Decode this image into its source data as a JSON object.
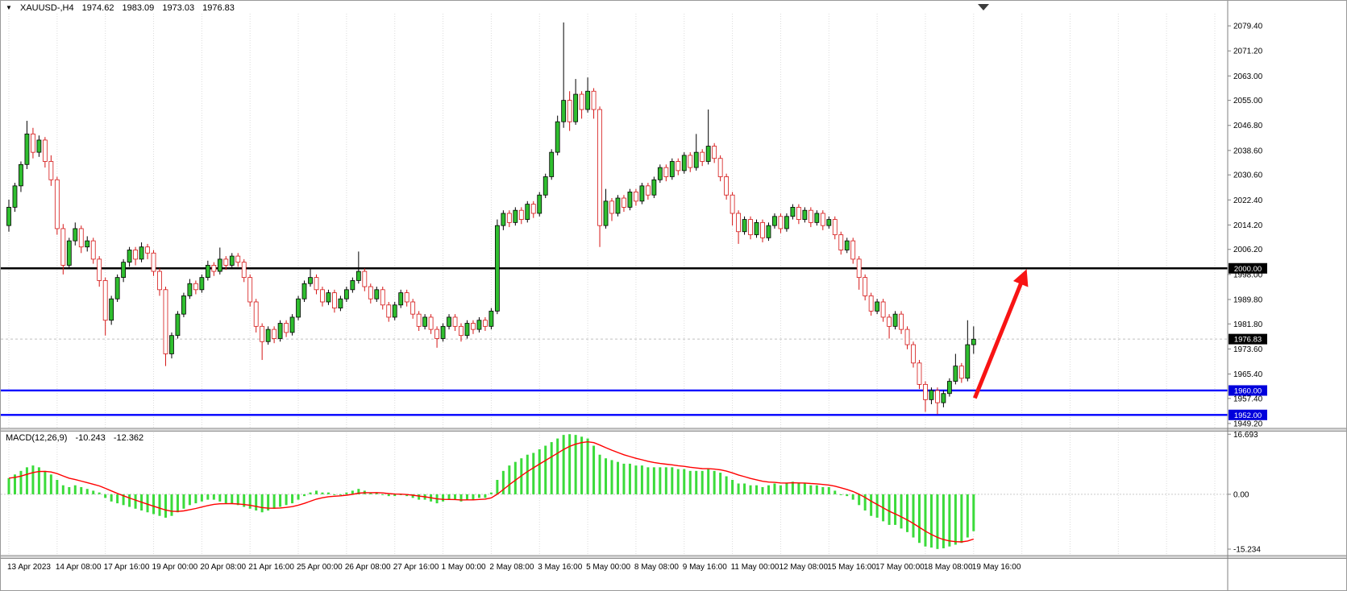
{
  "header": {
    "collapse_icon": "▼",
    "symbol": "XAUUSD-,H4",
    "ohlc": {
      "open": "1974.62",
      "high": "1983.09",
      "low": "1973.03",
      "close": "1976.83"
    }
  },
  "macd_header": {
    "name": "MACD(12,26,9)",
    "main": "-10.243",
    "signal": "-12.362"
  },
  "price_axis": {
    "labels": [
      "2079.40",
      "2071.20",
      "2063.00",
      "2055.00",
      "2046.80",
      "2038.60",
      "2030.60",
      "2022.40",
      "2014.20",
      "2006.20",
      "1998.00",
      "1989.80",
      "1981.80",
      "1973.60",
      "1965.40",
      "1957.40",
      "1949.20"
    ],
    "tags": [
      {
        "text": "2000.00",
        "price": 2000.0,
        "bg": "#000000"
      },
      {
        "text": "1976.83",
        "price": 1976.83,
        "bg": "#000000"
      },
      {
        "text": "1960.00",
        "price": 1960.0,
        "bg": "#0000DC"
      },
      {
        "text": "1952.00",
        "price": 1952.0,
        "bg": "#0000DC"
      }
    ]
  },
  "macd_axis": [
    {
      "label": "16.693",
      "value": 16.693
    },
    {
      "label": "0.00",
      "value": 0
    },
    {
      "label": "-15.234",
      "value": -15.234
    }
  ],
  "time_axis": {
    "step": 8,
    "labels": [
      "13 Apr 2023",
      "14 Apr 08:00",
      "17 Apr 16:00",
      "19 Apr 00:00",
      "20 Apr 08:00",
      "21 Apr 16:00",
      "25 Apr 00:00",
      "26 Apr 08:00",
      "27 Apr 16:00",
      "1 May 00:00",
      "2 May 08:00",
      "3 May 16:00",
      "5 May 00:00",
      "8 May 08:00",
      "9 May 16:00",
      "11 May 00:00",
      "12 May 08:00",
      "15 May 16:00",
      "17 May 00:00",
      "18 May 08:00",
      "19 May 16:00"
    ]
  },
  "chart_data": [
    {
      "type": "candlestick",
      "symbol": "XAUUSD-",
      "timeframe": "H4",
      "ohlc_order": [
        "open",
        "high",
        "low",
        "close"
      ],
      "ylim": [
        1947.6,
        2087.6
      ],
      "bull_color": "#2FBE2F",
      "bear_color": "#D51616",
      "current_price": 1976.83,
      "levels": [
        {
          "price": 2000.0,
          "color": "#000000",
          "width": 2.4
        },
        {
          "price": 1960.0,
          "color": "#0000FF",
          "width": 2.4
        },
        {
          "price": 1952.0,
          "color": "#0000FF",
          "width": 2.4
        }
      ],
      "arrow": {
        "color": "#F81414",
        "width": 5,
        "from": {
          "index": 160.2,
          "price": 1957.5
        },
        "to": {
          "index": 168.2,
          "price": 1996.8
        }
      },
      "candles": [
        [
          2014,
          2022.5,
          2012,
          2020
        ],
        [
          2020,
          2028,
          2018.5,
          2027
        ],
        [
          2027,
          2035,
          2025,
          2034
        ],
        [
          2034,
          2048.3,
          2032.5,
          2044
        ],
        [
          2044,
          2046,
          2036,
          2038
        ],
        [
          2038,
          2043.5,
          2036.5,
          2042
        ],
        [
          2042,
          2043,
          2033,
          2035
        ],
        [
          2035,
          2037,
          2027,
          2029
        ],
        [
          2029,
          2030,
          2011,
          2013
        ],
        [
          2013,
          2014.5,
          1998,
          2001
        ],
        [
          2001,
          2010,
          2000,
          2009
        ],
        [
          2009,
          2015,
          2007.5,
          2013
        ],
        [
          2013,
          2014,
          2005,
          2007
        ],
        [
          2007,
          2010.5,
          2005.5,
          2009
        ],
        [
          2009,
          2010,
          2001.5,
          2003
        ],
        [
          2003,
          2004,
          1994,
          1996
        ],
        [
          1996,
          1997,
          1978,
          1983
        ],
        [
          1983,
          1991,
          1981.5,
          1990
        ],
        [
          1990,
          1998,
          1989,
          1997
        ],
        [
          1997,
          2003,
          1995.5,
          2002
        ],
        [
          2002,
          2007,
          2000.5,
          2006
        ],
        [
          2006,
          2007,
          2001,
          2003
        ],
        [
          2003,
          2008.5,
          2002,
          2007
        ],
        [
          2007,
          2008,
          2003,
          2005
        ],
        [
          2005,
          2006,
          1997.5,
          1999
        ],
        [
          1999,
          2000,
          1991,
          1993
        ],
        [
          1993,
          1994,
          1968,
          1972
        ],
        [
          1972,
          1979,
          1970.5,
          1978
        ],
        [
          1978,
          1986,
          1977,
          1985
        ],
        [
          1985,
          1992,
          1984,
          1991
        ],
        [
          1991,
          1996.5,
          1990,
          1995
        ],
        [
          1995,
          1996,
          1991.5,
          1993
        ],
        [
          1993,
          1998,
          1992,
          1997
        ],
        [
          1997,
          2002.5,
          1996,
          2001
        ],
        [
          2001,
          2002,
          1997.5,
          1999
        ],
        [
          1999,
          2006.8,
          1998,
          2003
        ],
        [
          2003,
          2004,
          1999.5,
          2001
        ],
        [
          2001,
          2005,
          2000,
          2004
        ],
        [
          2004,
          2005,
          2000.5,
          2002
        ],
        [
          2002,
          2003,
          1995.5,
          1997
        ],
        [
          1997,
          1998,
          1987.5,
          1989
        ],
        [
          1989,
          1990,
          1979,
          1981
        ],
        [
          1981,
          1982,
          1970,
          1976
        ],
        [
          1976,
          1981,
          1975,
          1980
        ],
        [
          1980,
          1981,
          1975.5,
          1977
        ],
        [
          1977,
          1983,
          1976,
          1982
        ],
        [
          1982,
          1983,
          1977.5,
          1979
        ],
        [
          1979,
          1985,
          1978,
          1984
        ],
        [
          1984,
          1991,
          1983,
          1990
        ],
        [
          1990,
          1996,
          1989,
          1995
        ],
        [
          1995,
          2000.2,
          1994,
          1997
        ],
        [
          1997,
          1998,
          1991.5,
          1993
        ],
        [
          1993,
          1994,
          1987.5,
          1989
        ],
        [
          1989,
          1993,
          1988,
          1992
        ],
        [
          1992,
          1993,
          1985.5,
          1987
        ],
        [
          1987,
          1991,
          1986,
          1990
        ],
        [
          1990,
          1994,
          1989,
          1993
        ],
        [
          1993,
          1997,
          1992,
          1996
        ],
        [
          1996,
          2005.5,
          1995,
          1999
        ],
        [
          1999,
          2000,
          1992.5,
          1994
        ],
        [
          1994,
          1995,
          1988.5,
          1990
        ],
        [
          1990,
          1994,
          1989,
          1993
        ],
        [
          1993,
          1994,
          1986.5,
          1988
        ],
        [
          1988,
          1989,
          1982.5,
          1984
        ],
        [
          1984,
          1989,
          1983,
          1988
        ],
        [
          1988,
          1993,
          1987,
          1992
        ],
        [
          1992,
          1993,
          1987.5,
          1989
        ],
        [
          1989,
          1990,
          1983.5,
          1985
        ],
        [
          1985,
          1986,
          1979.5,
          1981
        ],
        [
          1981,
          1985,
          1980,
          1984
        ],
        [
          1984,
          1985,
          1978.5,
          1980
        ],
        [
          1980,
          1981,
          1974,
          1977
        ],
        [
          1977,
          1982,
          1976,
          1981
        ],
        [
          1981,
          1985,
          1980,
          1984
        ],
        [
          1984,
          1985,
          1979.5,
          1981
        ],
        [
          1981,
          1982,
          1976,
          1978
        ],
        [
          1978,
          1983,
          1977,
          1982
        ],
        [
          1982,
          1983,
          1978.5,
          1980
        ],
        [
          1980,
          1984,
          1979,
          1983
        ],
        [
          1983,
          1984,
          1979.5,
          1981
        ],
        [
          1981,
          1987,
          1980,
          1986
        ],
        [
          1986,
          2016,
          1985,
          2014
        ],
        [
          2014,
          2019,
          2012.5,
          2018
        ],
        [
          2018,
          2019,
          2013.5,
          2015
        ],
        [
          2015,
          2020,
          2014,
          2019
        ],
        [
          2019,
          2020,
          2014.5,
          2016
        ],
        [
          2016,
          2022,
          2015,
          2021
        ],
        [
          2021,
          2022,
          2016.5,
          2018
        ],
        [
          2018,
          2025,
          2017,
          2024
        ],
        [
          2024,
          2031,
          2023,
          2030
        ],
        [
          2030,
          2039,
          2029,
          2038
        ],
        [
          2038,
          2050,
          2037,
          2048
        ],
        [
          2048,
          2080.5,
          2046,
          2055
        ],
        [
          2055,
          2058,
          2045,
          2048
        ],
        [
          2048,
          2062,
          2047,
          2057
        ],
        [
          2057,
          2058,
          2049,
          2052
        ],
        [
          2052,
          2062.5,
          2051,
          2058
        ],
        [
          2058,
          2059,
          2049,
          2052
        ],
        [
          2052,
          2053,
          2007,
          2014
        ],
        [
          2014,
          2026,
          2013,
          2022
        ],
        [
          2022,
          2023,
          2015.5,
          2018
        ],
        [
          2018,
          2024,
          2017,
          2023
        ],
        [
          2023,
          2024,
          2018.5,
          2020
        ],
        [
          2020,
          2026,
          2019,
          2025
        ],
        [
          2025,
          2026,
          2020.5,
          2022
        ],
        [
          2022,
          2028,
          2021,
          2027
        ],
        [
          2027,
          2028,
          2022.5,
          2024
        ],
        [
          2024,
          2030,
          2023,
          2029
        ],
        [
          2029,
          2034,
          2028,
          2033
        ],
        [
          2033,
          2034,
          2028.5,
          2030
        ],
        [
          2030,
          2036,
          2029,
          2035
        ],
        [
          2035,
          2036,
          2030.5,
          2032
        ],
        [
          2032,
          2038,
          2031,
          2037
        ],
        [
          2037,
          2038,
          2031.5,
          2033
        ],
        [
          2033,
          2044,
          2032,
          2038
        ],
        [
          2038,
          2039,
          2033.5,
          2035
        ],
        [
          2035,
          2052,
          2034,
          2040
        ],
        [
          2040,
          2041,
          2034.5,
          2036
        ],
        [
          2036,
          2037,
          2028.5,
          2030
        ],
        [
          2030,
          2031,
          2022.5,
          2024
        ],
        [
          2024,
          2025,
          2014,
          2018
        ],
        [
          2018,
          2019,
          2008,
          2012
        ],
        [
          2012,
          2017,
          2011,
          2016
        ],
        [
          2016,
          2017,
          2009.5,
          2011
        ],
        [
          2011,
          2016,
          2010,
          2015
        ],
        [
          2015,
          2016,
          2008.5,
          2010
        ],
        [
          2010,
          2015,
          2009,
          2014
        ],
        [
          2014,
          2018,
          2013,
          2017
        ],
        [
          2017,
          2018,
          2011.5,
          2013
        ],
        [
          2013,
          2018,
          2012,
          2017
        ],
        [
          2017,
          2021,
          2016,
          2020
        ],
        [
          2020,
          2021,
          2014.5,
          2016
        ],
        [
          2016,
          2020,
          2015,
          2019
        ],
        [
          2019,
          2020,
          2013.5,
          2015
        ],
        [
          2015,
          2019,
          2014,
          2018
        ],
        [
          2018,
          2019,
          2012.5,
          2014
        ],
        [
          2014,
          2017,
          2013,
          2016
        ],
        [
          2016,
          2017,
          2009.5,
          2011
        ],
        [
          2011,
          2012,
          2004.5,
          2006
        ],
        [
          2006,
          2010,
          2005,
          2009
        ],
        [
          2009,
          2010,
          2001.5,
          2003
        ],
        [
          2003,
          2004,
          1993,
          1997
        ],
        [
          1997,
          1998,
          1989.5,
          1991
        ],
        [
          1991,
          1992,
          1984.5,
          1986
        ],
        [
          1986,
          1990,
          1985,
          1989
        ],
        [
          1989,
          1990,
          1982.5,
          1984
        ],
        [
          1984,
          1985,
          1977,
          1981
        ],
        [
          1981,
          1986,
          1980,
          1985
        ],
        [
          1985,
          1986,
          1978.5,
          1980
        ],
        [
          1980,
          1981,
          1973.5,
          1975
        ],
        [
          1975,
          1976,
          1967.5,
          1969
        ],
        [
          1969,
          1970,
          1960.5,
          1962
        ],
        [
          1962,
          1963,
          1953,
          1957
        ],
        [
          1957,
          1961,
          1955.5,
          1960
        ],
        [
          1960,
          1961,
          1952.2,
          1956
        ],
        [
          1956,
          1960,
          1954.5,
          1959
        ],
        [
          1959,
          1964,
          1958,
          1963
        ],
        [
          1963,
          1972,
          1962,
          1968
        ],
        [
          1968,
          1969,
          1962.5,
          1964
        ],
        [
          1964,
          1983,
          1963,
          1975
        ],
        [
          1975,
          1981,
          1972,
          1976.8
        ]
      ]
    },
    {
      "type": "bar",
      "name": "MACD",
      "params": "12,26,9",
      "histogram_color": "#3BDB3B",
      "signal_color": "#FF0000",
      "signal_period": 9,
      "ylim": [
        -16.8,
        17.2
      ],
      "values": [
        4.5,
        5.5,
        6.5,
        7.5,
        8,
        7.5,
        6.5,
        5.5,
        4,
        2.5,
        2,
        2.5,
        2,
        1.5,
        1,
        0.5,
        -1,
        -2,
        -2.5,
        -3,
        -3.5,
        -4,
        -4.5,
        -5,
        -5.5,
        -6,
        -6.5,
        -6,
        -5,
        -4,
        -3,
        -2.5,
        -2,
        -1.5,
        -1.5,
        -2,
        -2.5,
        -2.5,
        -3,
        -3.5,
        -4,
        -4.5,
        -5,
        -4.5,
        -4,
        -3.5,
        -3,
        -2.5,
        -1.5,
        -0.5,
        0.5,
        1,
        0.5,
        0.5,
        0,
        0,
        0.5,
        1,
        1.5,
        1,
        0.5,
        0.5,
        0,
        -0.5,
        -0.5,
        0,
        -0.5,
        -1,
        -1.5,
        -1.5,
        -2,
        -2.5,
        -2,
        -1.5,
        -1.5,
        -2,
        -1.5,
        -1.5,
        -1,
        -1,
        0.5,
        4,
        6.5,
        8,
        9,
        10,
        11,
        11.5,
        12.5,
        13.5,
        14.5,
        15.5,
        16.5,
        16.7,
        16.5,
        16,
        15.5,
        13.5,
        11,
        10,
        9.5,
        9,
        8.5,
        8.5,
        8,
        8,
        7.5,
        7.5,
        7.5,
        7.5,
        7.5,
        7,
        7,
        6.5,
        6.5,
        6.5,
        7,
        6.5,
        6,
        5,
        4,
        3,
        3,
        2.5,
        2.5,
        2,
        2.5,
        3,
        2.5,
        3,
        3.5,
        3,
        3,
        2.5,
        2.5,
        2,
        2,
        1,
        0,
        -0.5,
        -1.5,
        -3,
        -4.5,
        -6,
        -6.5,
        -7.5,
        -8.5,
        -8.5,
        -9.5,
        -10.5,
        -12,
        -13.5,
        -14.5,
        -14.8,
        -15.2,
        -15,
        -14.5,
        -14,
        -13.5,
        -12,
        -10.243
      ]
    }
  ]
}
